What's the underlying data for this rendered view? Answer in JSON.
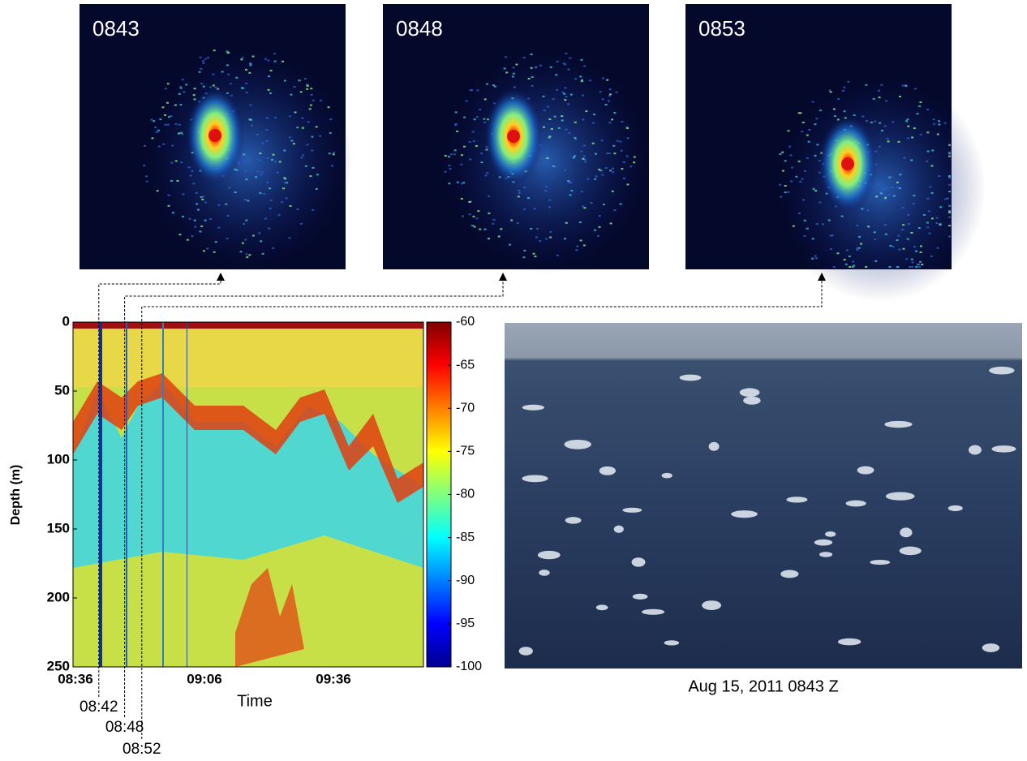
{
  "sonar_panels": [
    {
      "label": "0843"
    },
    {
      "label": "0848"
    },
    {
      "label": "0853"
    }
  ],
  "echogram": {
    "y_label": "Depth (m)",
    "x_label": "Time",
    "ylim": [
      0,
      250
    ],
    "yticks": [
      0,
      50,
      100,
      150,
      200,
      250
    ],
    "xticks": [
      "08:36",
      "09:06",
      "09:36"
    ],
    "markers": [
      "08:42",
      "08:48",
      "08:52"
    ],
    "colorbar": {
      "clim": [
        -100,
        -60
      ],
      "ticks": [
        -60,
        -65,
        -70,
        -75,
        -80,
        -85,
        -90,
        -95,
        -100
      ]
    }
  },
  "photo": {
    "caption": "Aug 15, 2011 0843 Z"
  }
}
